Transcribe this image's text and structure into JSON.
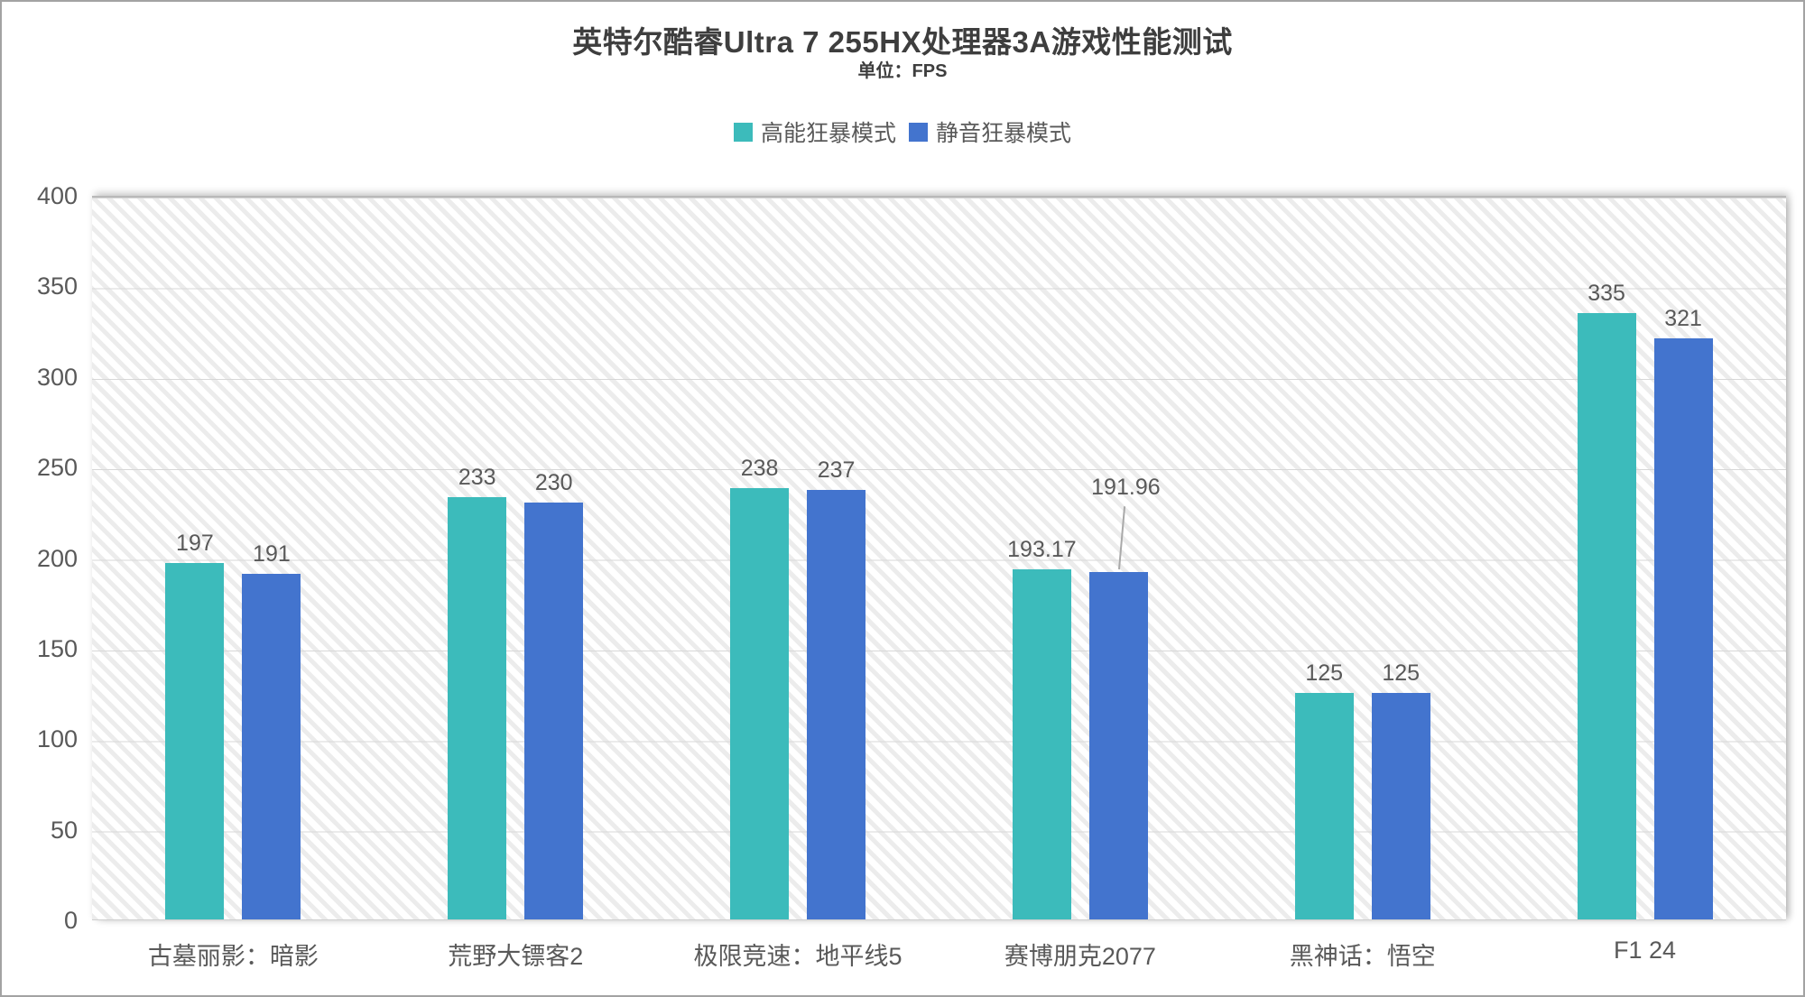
{
  "title": "英特尔酷睿Ultra 7 255HX处理器3A游戏性能测试",
  "subtitle": "单位：FPS",
  "colors": {
    "series1": "#3cbbbb",
    "series2": "#4374ce",
    "axis_text": "#595959",
    "title_text": "#3e3e3e",
    "gridline": "#d7d7d7",
    "hatch_stripe": "#ececec",
    "frame_border": "#a3a3a3"
  },
  "chart_data": {
    "type": "bar",
    "title": "英特尔酷睿Ultra 7 255HX处理器3A游戏性能测试",
    "subtitle": "单位：FPS",
    "categories": [
      "古墓丽影：暗影",
      "荒野大镖客2",
      "极限竞速：地平线5",
      "赛博朋克2077",
      "黑神话：悟空",
      "F1 24"
    ],
    "series": [
      {
        "name": "高能狂暴模式",
        "color": "#3cbbbb",
        "values": [
          197,
          233,
          238,
          193.17,
          125,
          335
        ]
      },
      {
        "name": "静音狂暴模式",
        "color": "#4374ce",
        "values": [
          191,
          230,
          237,
          191.96,
          125,
          321
        ]
      }
    ],
    "ylim": [
      0,
      400
    ],
    "ytick_step": 50,
    "y_ticks": [
      400,
      350,
      300,
      250,
      200,
      150,
      100,
      50,
      0
    ],
    "grid": true,
    "legend_position": "top",
    "plot_background": "diagonal-hatch",
    "annotations": [
      {
        "series": 1,
        "index": 3,
        "type": "leader-line",
        "label": "191.96"
      }
    ]
  }
}
